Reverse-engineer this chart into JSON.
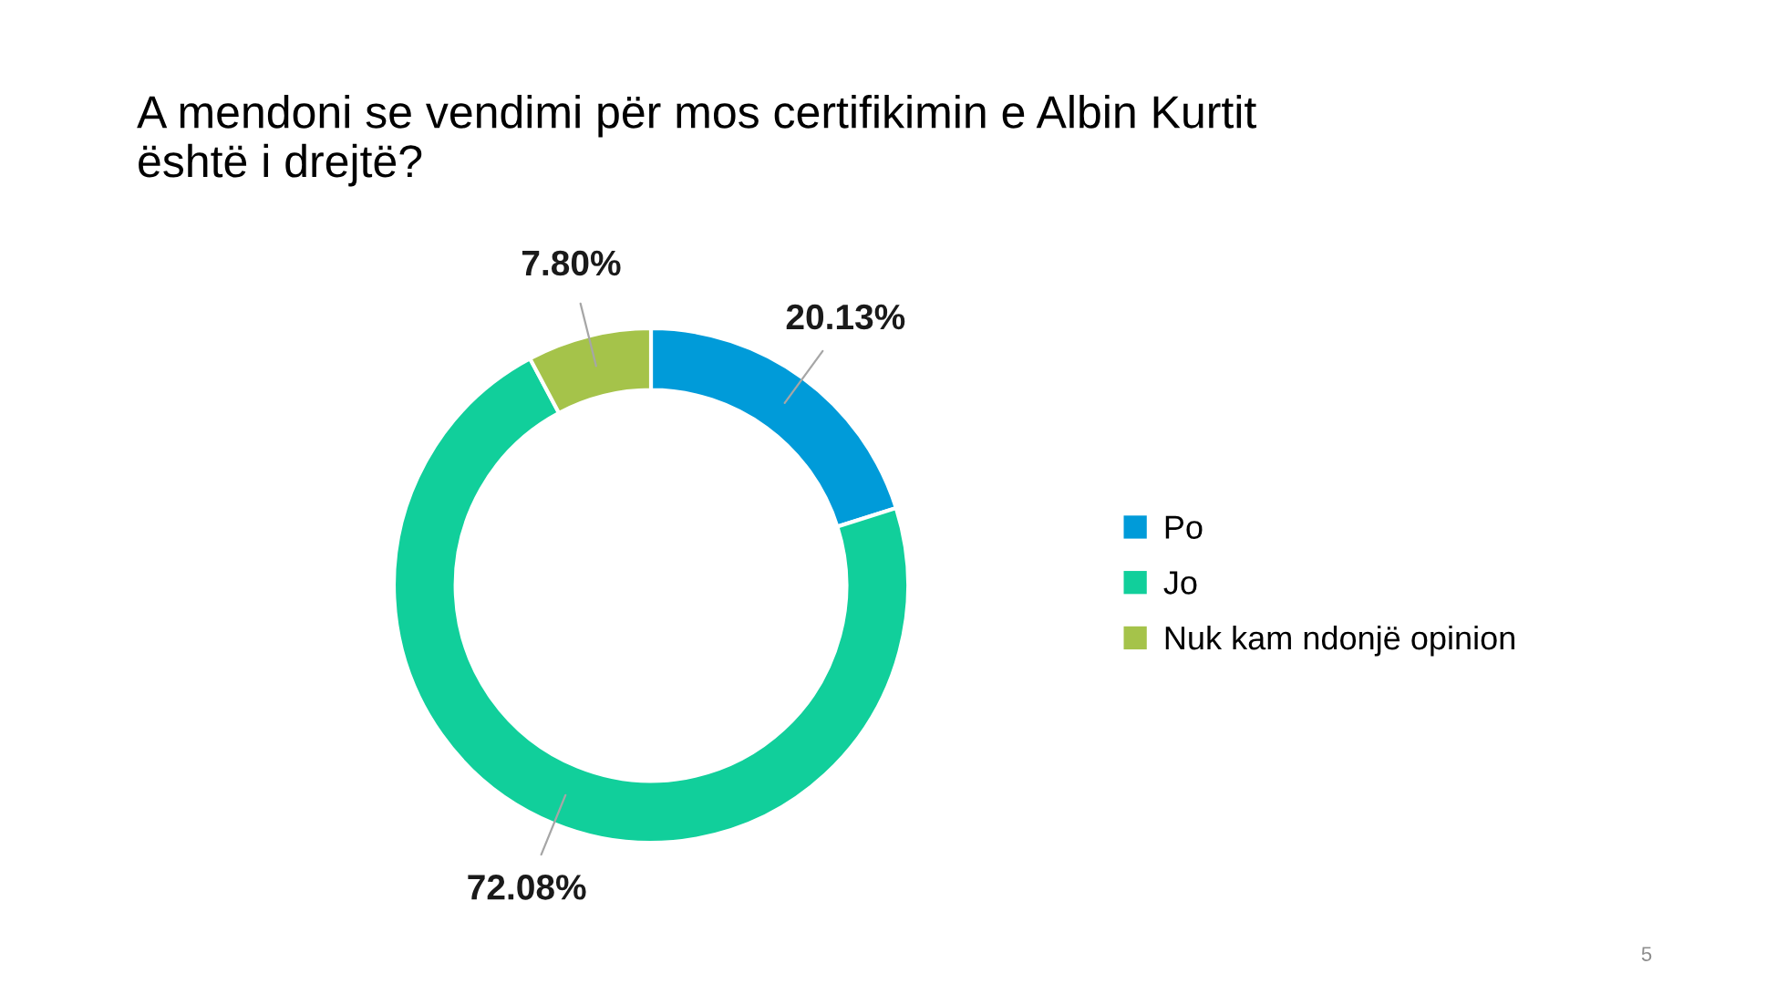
{
  "chart_data": {
    "type": "donut",
    "title": "A mendoni se vendimi për mos certifikimin e Albin Kurtit\nështë i drejtë?",
    "categories": [
      "Po",
      "Jo",
      "Nuk kam ndonjë opinion"
    ],
    "values": [
      20.13,
      72.08,
      7.8
    ],
    "colors": [
      "#009bd9",
      "#11cf9b",
      "#a5c34a"
    ],
    "value_labels": [
      "20.13%",
      "72.08%",
      "7.80%"
    ],
    "legend": "right",
    "annotations": [
      "5"
    ]
  }
}
